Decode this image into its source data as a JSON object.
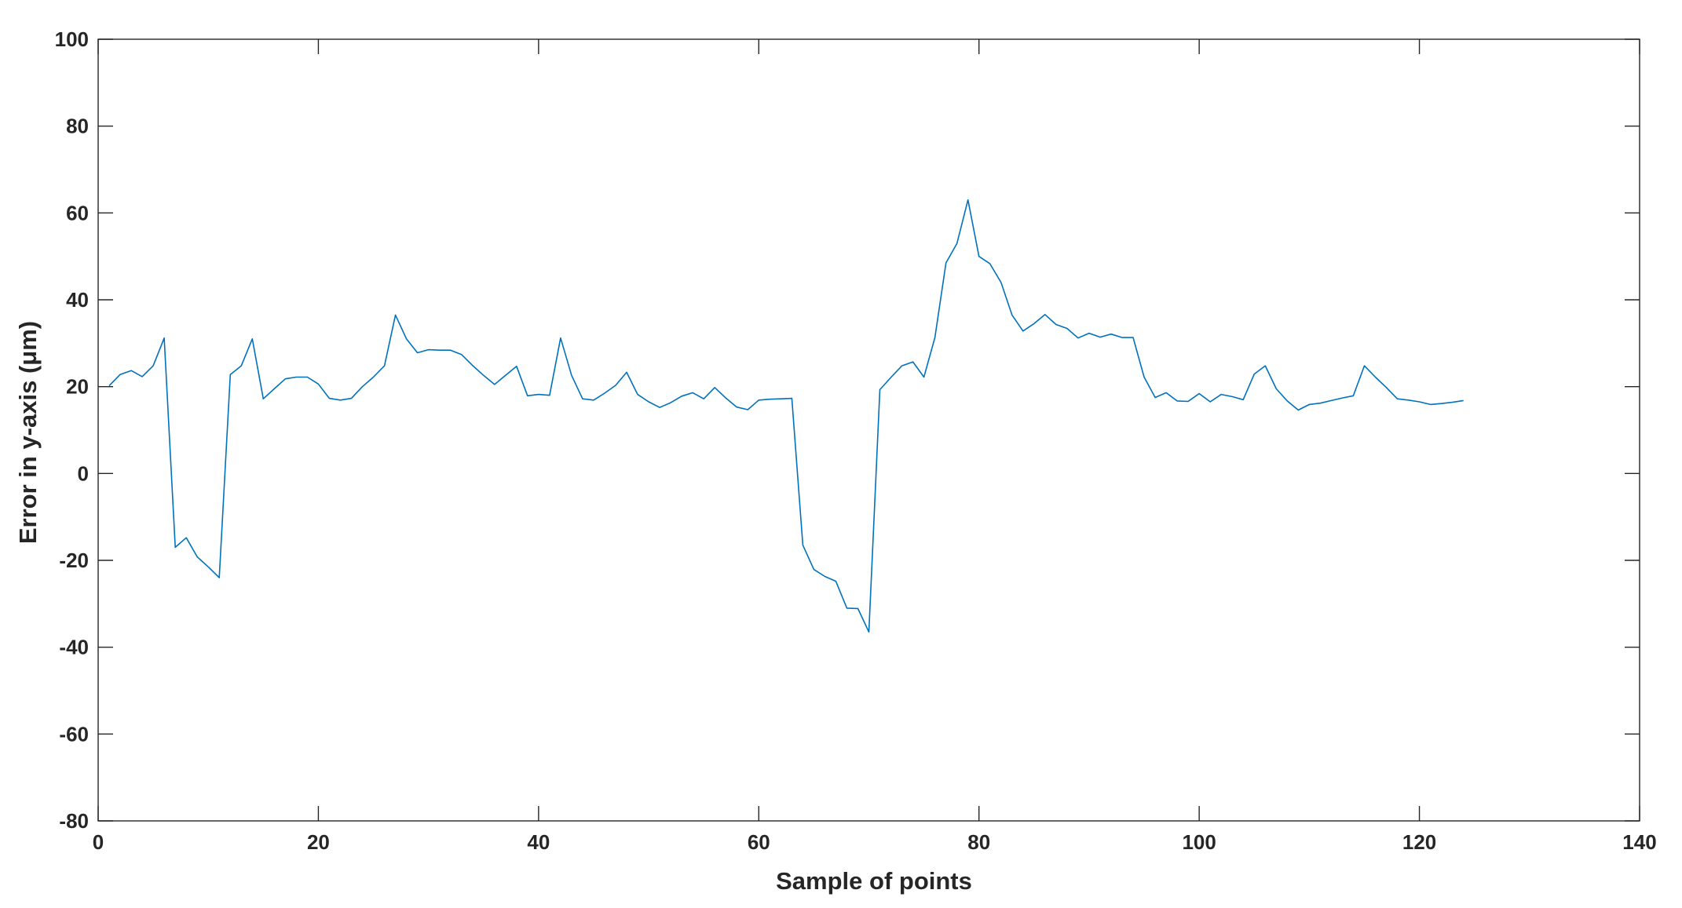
{
  "chart_data": {
    "type": "line",
    "title": "",
    "xlabel": "Sample of points",
    "ylabel": "Error in y-axis (μm)",
    "xlim": [
      0,
      140
    ],
    "ylim": [
      -80,
      100
    ],
    "xticks": [
      0,
      20,
      40,
      60,
      80,
      100,
      120,
      140
    ],
    "yticks": [
      -80,
      -60,
      -40,
      -20,
      0,
      20,
      40,
      60,
      80,
      100
    ],
    "grid": false,
    "legend": "none",
    "series": [
      {
        "color": "#0072BD",
        "x": [
          1,
          2,
          3,
          4,
          5,
          6,
          7,
          8,
          9,
          10,
          11,
          12,
          13,
          14,
          15,
          16,
          17,
          18,
          19,
          20,
          21,
          22,
          23,
          24,
          25,
          26,
          27,
          28,
          29,
          30,
          31,
          32,
          33,
          34,
          35,
          36,
          37,
          38,
          39,
          40,
          41,
          42,
          43,
          44,
          45,
          46,
          47,
          48,
          49,
          50,
          51,
          52,
          53,
          54,
          55,
          56,
          57,
          58,
          59,
          60,
          61,
          62,
          63,
          64,
          65,
          66,
          67,
          68,
          69,
          70,
          71,
          72,
          73,
          74,
          75,
          76,
          77,
          78,
          79,
          80,
          81,
          82,
          83,
          84,
          85,
          86,
          87,
          88,
          89,
          90,
          91,
          92,
          93,
          94,
          95,
          96,
          97,
          98,
          99,
          100,
          101,
          102,
          103,
          104,
          105,
          106,
          107,
          108,
          109,
          110,
          111,
          112,
          113,
          114,
          115,
          116,
          117,
          118,
          119,
          120,
          121,
          122,
          123,
          124
        ],
        "y": [
          20.2,
          22.8,
          23.7,
          22.3,
          24.8,
          31.2,
          -17.0,
          -14.8,
          -19.2,
          -21.5,
          -24.0,
          22.8,
          24.8,
          31.0,
          17.2,
          19.5,
          21.8,
          22.2,
          22.2,
          20.6,
          17.3,
          16.9,
          17.3,
          20.0,
          22.2,
          24.8,
          36.5,
          31.0,
          27.8,
          28.5,
          28.4,
          28.4,
          27.4,
          24.9,
          22.6,
          20.5,
          22.6,
          24.7,
          17.9,
          18.2,
          18.0,
          31.2,
          22.6,
          17.2,
          16.9,
          18.5,
          20.3,
          23.3,
          18.2,
          16.5,
          15.2,
          16.3,
          17.8,
          18.6,
          17.2,
          19.8,
          17.4,
          15.3,
          14.7,
          16.9,
          17.1,
          17.2,
          17.3,
          -16.5,
          -22.1,
          -23.7,
          -24.8,
          -31.0,
          -31.1,
          -36.5,
          19.3,
          22.1,
          24.8,
          25.7,
          22.2,
          31.3,
          48.5,
          53.0,
          63.0,
          50.0,
          48.3,
          44.0,
          36.5,
          32.8,
          34.5,
          36.6,
          34.3,
          33.4,
          31.2,
          32.3,
          31.4,
          32.1,
          31.3,
          31.3,
          22.2,
          17.5,
          18.6,
          16.7,
          16.6,
          18.4,
          16.5,
          18.2,
          17.7,
          17.0,
          22.9,
          24.8,
          19.5,
          16.7,
          14.6,
          15.9,
          16.2,
          16.8,
          17.4,
          17.9,
          24.8,
          22.2,
          19.8,
          17.2,
          16.9,
          16.5,
          15.9,
          16.1,
          16.4,
          16.8
        ]
      }
    ]
  }
}
